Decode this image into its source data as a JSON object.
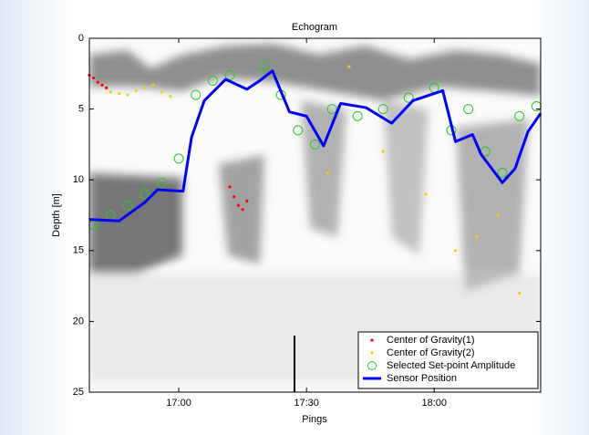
{
  "chart_data": {
    "type": "line",
    "title": "Echogram",
    "x_label": "Pings",
    "y_label": "Depth [m]",
    "xlim": [
      "16:39",
      "18:25"
    ],
    "xticks": [
      "17:00",
      "17:30",
      "18:00"
    ],
    "ylim": [
      0,
      25
    ],
    "yticks": [
      0,
      5,
      10,
      15,
      20,
      25
    ],
    "y_inverted": true,
    "legend": "lower right",
    "series": [
      {
        "name": "Center of Gravity(1)",
        "color": "#ff0000",
        "style": "dot",
        "x": [
          "16:39",
          "16:40",
          "16:41",
          "16:42",
          "16:43",
          "17:12",
          "17:13",
          "17:14",
          "17:15",
          "17:16"
        ],
        "values": [
          2.6,
          2.8,
          3.1,
          3.3,
          3.5,
          10.5,
          11.2,
          11.8,
          12.1,
          11.5
        ]
      },
      {
        "name": "Center of Gravity(2)",
        "color": "#e8d400",
        "style": "dot",
        "x": [
          "16:44",
          "16:46",
          "16:48",
          "16:50",
          "16:52",
          "16:54",
          "16:56",
          "16:58",
          "17:35",
          "17:48",
          "17:58",
          "18:05",
          "18:10",
          "18:15",
          "17:40",
          "18:20"
        ],
        "values": [
          3.8,
          3.9,
          4.0,
          3.7,
          3.5,
          3.3,
          3.8,
          4.1,
          9.5,
          8.0,
          11.0,
          15.0,
          14.0,
          12.5,
          2.0,
          18.0
        ]
      },
      {
        "name": "Selected Set-point Amplitude",
        "color": "#22cc22",
        "style": "circle",
        "x": [
          "16:40",
          "16:44",
          "16:48",
          "16:52",
          "16:56",
          "17:00",
          "17:04",
          "17:08",
          "17:12",
          "17:20",
          "17:24",
          "17:28",
          "17:32",
          "17:36",
          "17:42",
          "17:48",
          "17:54",
          "18:00",
          "18:04",
          "18:08",
          "18:12",
          "18:16",
          "18:20",
          "18:24"
        ],
        "values": [
          13.2,
          12.5,
          11.8,
          11.0,
          10.2,
          8.5,
          4.0,
          3.0,
          2.6,
          2.0,
          4.0,
          6.5,
          7.5,
          5.0,
          5.5,
          5.0,
          4.2,
          3.5,
          6.5,
          5.0,
          8.0,
          9.5,
          5.5,
          4.8
        ]
      },
      {
        "name": "Sensor Position",
        "color": "#0000ff",
        "style": "line",
        "x": [
          "16:39",
          "16:46",
          "16:52",
          "16:55",
          "17:01",
          "17:03",
          "17:06",
          "17:11",
          "17:16",
          "17:19",
          "17:22",
          "17:26",
          "17:30",
          "17:34",
          "17:38",
          "17:44",
          "17:50",
          "17:55",
          "18:02",
          "18:05",
          "18:09",
          "18:11",
          "18:16",
          "18:19",
          "18:22",
          "18:25"
        ],
        "values": [
          12.8,
          12.9,
          11.6,
          10.7,
          10.8,
          7.0,
          4.4,
          2.9,
          3.6,
          3.0,
          2.3,
          5.2,
          5.5,
          7.6,
          4.6,
          4.9,
          6.0,
          4.4,
          3.7,
          7.3,
          6.8,
          8.2,
          10.2,
          9.2,
          6.6,
          5.3
        ]
      }
    ]
  }
}
